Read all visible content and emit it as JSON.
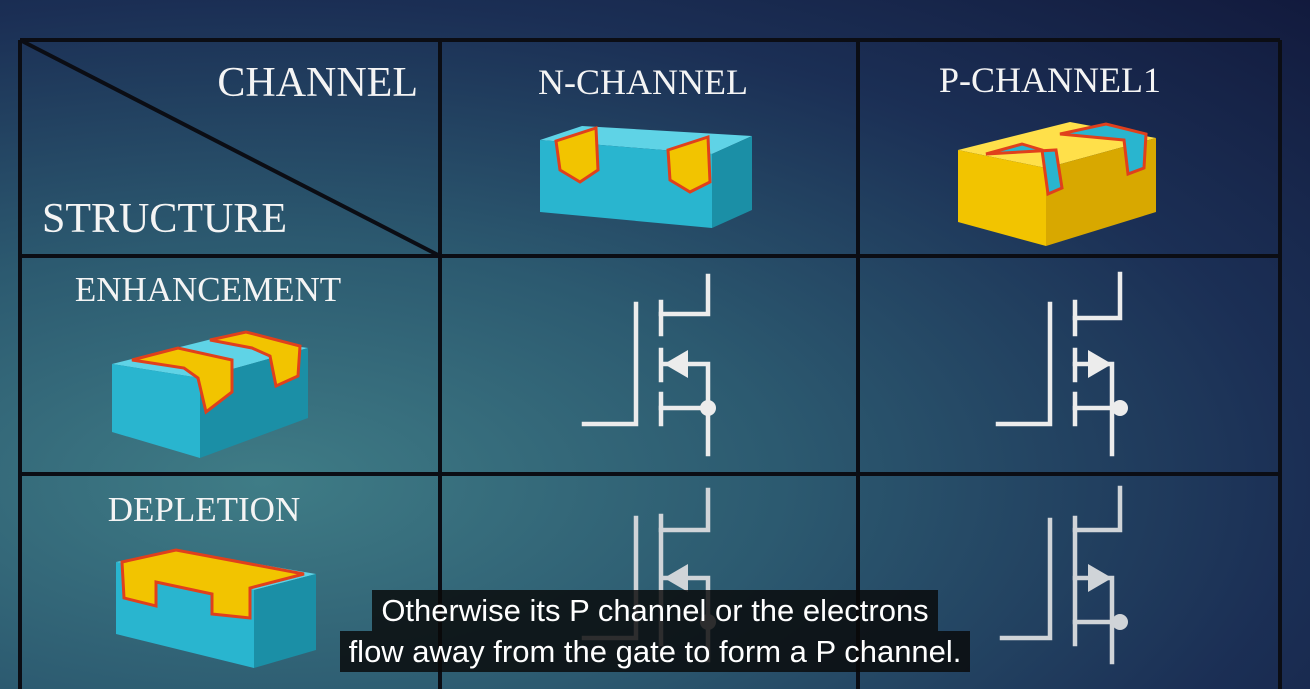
{
  "table": {
    "corner_top": "CHANNEL",
    "corner_bottom": "STRUCTURE",
    "col_headers": [
      "N-CHANNEL",
      "P-CHANNEL1"
    ],
    "row_headers": [
      "ENHANCEMENT",
      "DEPLETION"
    ]
  },
  "captions": [
    "Otherwise its P channel or the electrons",
    "flow away from the gate to form a P channel."
  ],
  "colors": {
    "substrate_n": "#29b5cf",
    "substrate_p": "#f2c400",
    "border_red": "#e0401c",
    "symbol": "#ececec"
  },
  "icons": [
    "n-channel-block-icon",
    "p-channel-block-icon",
    "enhancement-block-icon",
    "depletion-block-icon",
    "n-enhancement-mosfet-symbol",
    "p-enhancement-mosfet-symbol",
    "n-depletion-mosfet-symbol",
    "p-depletion-mosfet-symbol"
  ]
}
